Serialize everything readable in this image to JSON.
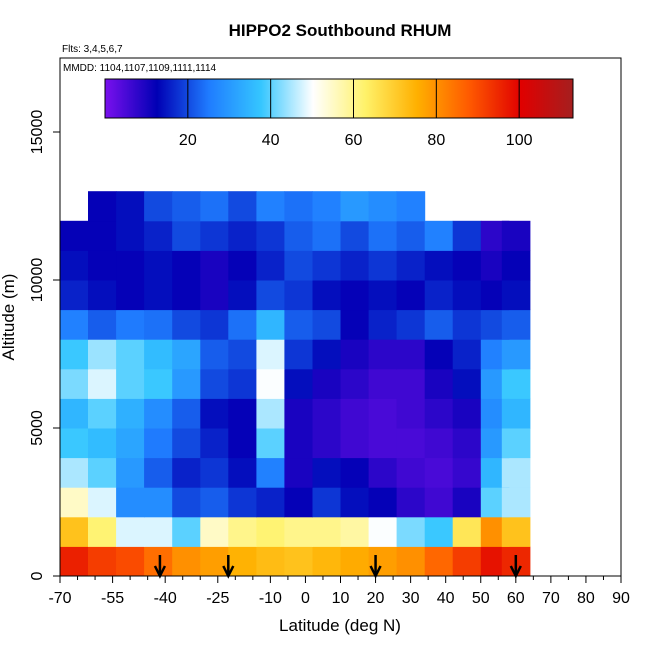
{
  "chart_data": {
    "type": "heatmap",
    "title": "HIPPO2 Southbound RHUM",
    "subtitle_flights": "Flts: 3,4,5,6,7",
    "subtitle_dates": "MMDD: 1104,1107,1109,1111,1114",
    "xlabel": "Latitude (deg N)",
    "ylabel": "Altitude (m)",
    "xlim": [
      -70,
      90
    ],
    "ylim": [
      0,
      17500
    ],
    "x_ticks": [
      -70,
      -55,
      -40,
      -25,
      -10,
      0,
      10,
      20,
      30,
      40,
      50,
      60,
      70,
      80,
      90
    ],
    "x_minor_ticks": [
      -65,
      -60,
      -50,
      -45,
      -35,
      -30,
      -20,
      -15,
      -5,
      5,
      15,
      25,
      35,
      45,
      55,
      65,
      75,
      85
    ],
    "y_ticks": [
      0,
      5000,
      10000,
      15000
    ],
    "colorbar": {
      "range": [
        0,
        113
      ],
      "ticks": [
        20,
        40,
        60,
        80,
        100
      ],
      "stops": [
        "#7a10ee",
        "#0000b4",
        "#1f7cff",
        "#35c6ff",
        "#ffffff",
        "#fff26a",
        "#ffb000",
        "#ff5a00",
        "#e00000",
        "#a51f1f"
      ]
    },
    "markers": [
      -41.5,
      -22,
      20,
      60
    ],
    "rhum_profile": {
      "altitudes": [
        500,
        1500,
        2500,
        3500,
        4500,
        5500,
        6500,
        7500,
        8500,
        9500,
        10500,
        11500,
        12500
      ],
      "latitudes": [
        -66,
        -58,
        -50,
        -42,
        -34,
        -26,
        -18,
        -10,
        -2,
        6,
        14,
        22,
        30,
        38,
        46,
        54,
        60
      ],
      "rows": [
        [
          96,
          92,
          90,
          85,
          80,
          78,
          75,
          73,
          72,
          74,
          76,
          78,
          80,
          86,
          92,
          98,
          95
        ],
        [
          72,
          62,
          48,
          48,
          40,
          55,
          60,
          62,
          60,
          60,
          58,
          50,
          42,
          38,
          65,
          80,
          72
        ],
        [
          55,
          48,
          28,
          28,
          20,
          22,
          18,
          16,
          12,
          18,
          14,
          12,
          8,
          6,
          10,
          40,
          45
        ],
        [
          45,
          40,
          30,
          22,
          16,
          18,
          14,
          26,
          10,
          14,
          12,
          8,
          6,
          5,
          7,
          35,
          45
        ],
        [
          38,
          36,
          32,
          25,
          20,
          16,
          12,
          40,
          10,
          8,
          6,
          5,
          5,
          6,
          8,
          30,
          40
        ],
        [
          35,
          40,
          34,
          28,
          22,
          14,
          12,
          45,
          10,
          8,
          6,
          5,
          6,
          8,
          10,
          28,
          35
        ],
        [
          42,
          48,
          40,
          38,
          30,
          20,
          18,
          50,
          14,
          10,
          8,
          6,
          6,
          10,
          14,
          30,
          38
        ],
        [
          38,
          44,
          40,
          36,
          32,
          22,
          20,
          48,
          18,
          14,
          10,
          8,
          8,
          12,
          16,
          26,
          30
        ],
        [
          26,
          22,
          25,
          24,
          20,
          18,
          24,
          35,
          22,
          20,
          12,
          16,
          18,
          22,
          18,
          20,
          22
        ],
        [
          16,
          14,
          12,
          14,
          12,
          10,
          14,
          20,
          18,
          14,
          12,
          14,
          12,
          16,
          14,
          12,
          14
        ],
        [
          14,
          12,
          12,
          14,
          12,
          10,
          12,
          16,
          20,
          18,
          16,
          18,
          16,
          14,
          12,
          10,
          12
        ],
        [
          12,
          12,
          14,
          16,
          20,
          18,
          16,
          18,
          22,
          24,
          20,
          24,
          22,
          26,
          18,
          8,
          10
        ],
        [
          null,
          12,
          14,
          20,
          22,
          24,
          20,
          26,
          24,
          26,
          30,
          28,
          26,
          null,
          null,
          null,
          null
        ]
      ]
    }
  }
}
